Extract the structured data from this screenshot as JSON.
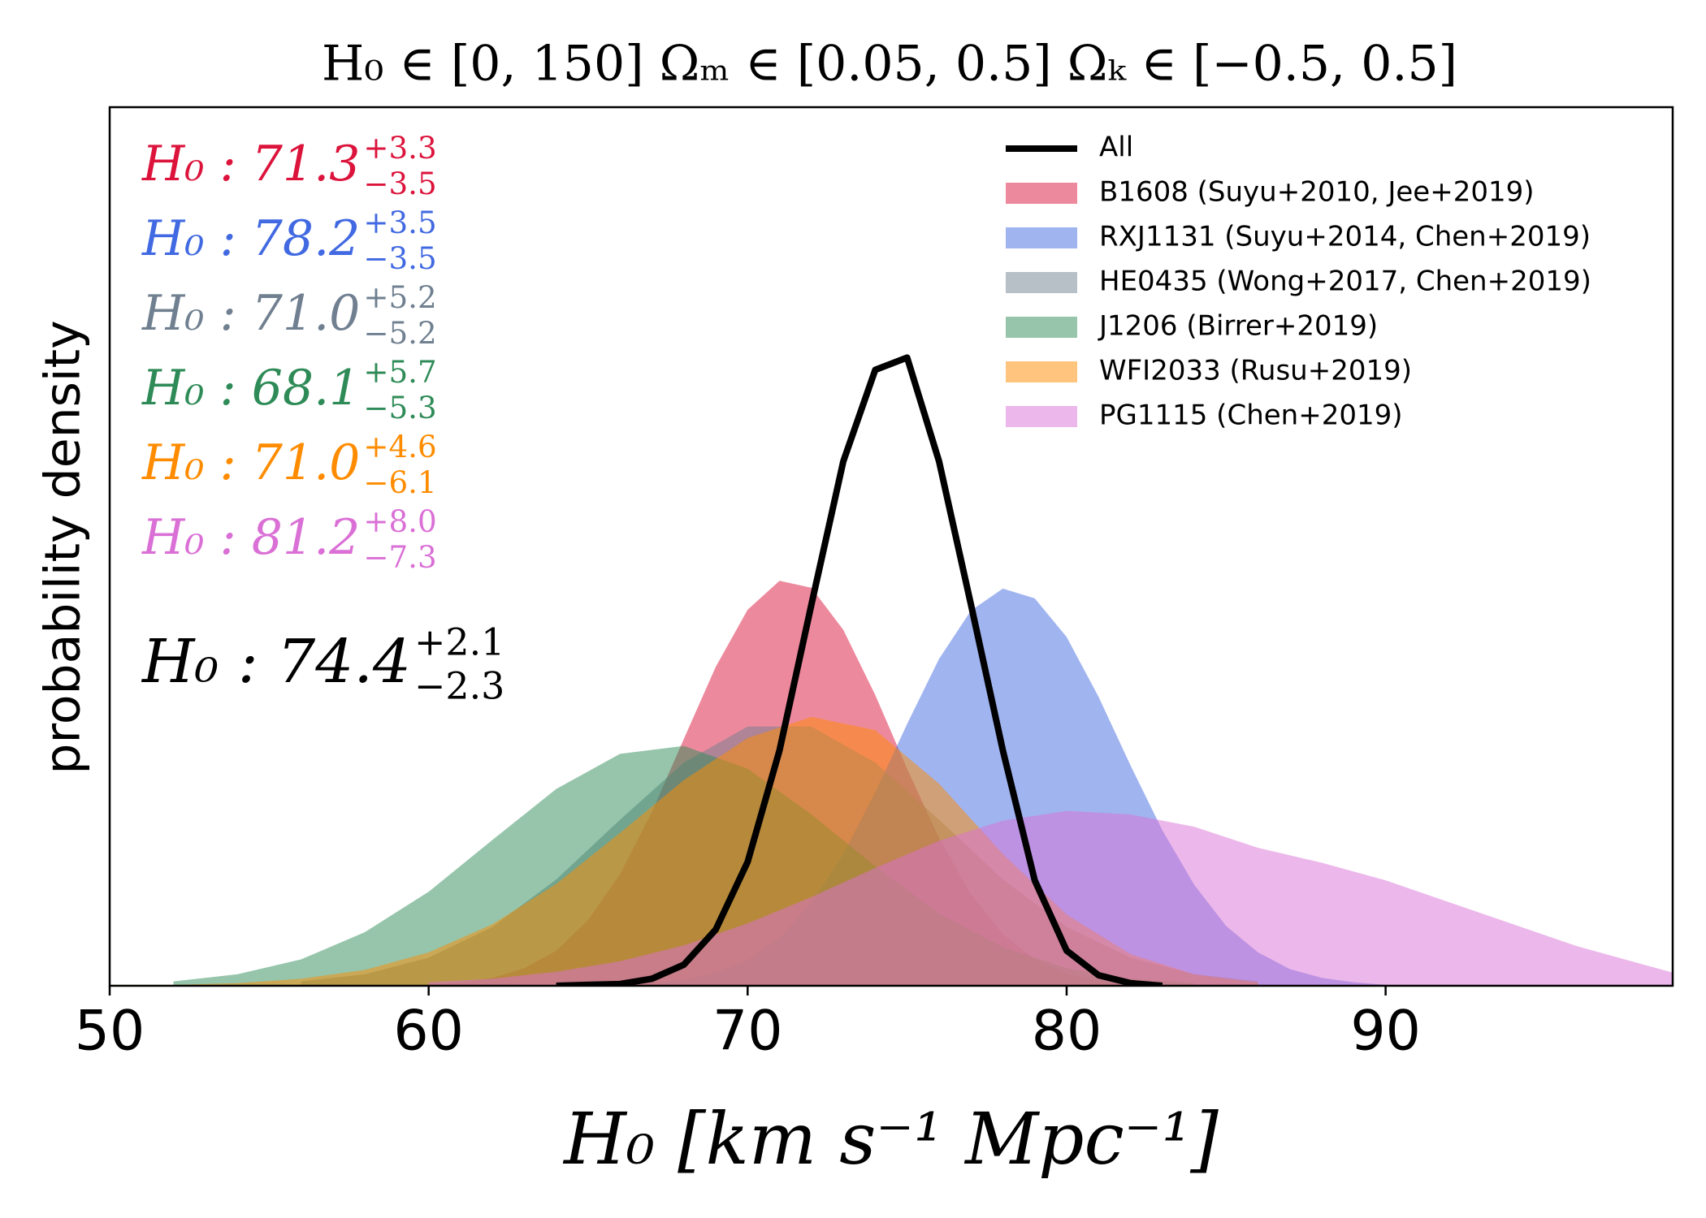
{
  "chart_data": {
    "type": "area",
    "title": "H₀ ∈ [0, 150]   Ωₘ ∈ [0.05, 0.5]   Ωₖ ∈ [−0.5, 0.5]",
    "xlabel": "H₀ [km s⁻¹ Mpc⁻¹]",
    "ylabel": "probability density",
    "xlim": [
      50,
      99
    ],
    "ylim": [
      0,
      1
    ],
    "xticks": [
      50,
      60,
      70,
      80,
      90
    ],
    "legend": "upper right",
    "fill_opacity": 0.5,
    "series": [
      {
        "name": "All",
        "type": "line",
        "color": "#000000",
        "x": [
          64,
          65,
          66,
          67,
          68,
          69,
          70,
          71,
          72,
          73,
          74,
          75,
          76,
          77,
          78,
          79,
          80,
          81,
          82,
          83
        ],
        "values": [
          0.0,
          0.001,
          0.002,
          0.008,
          0.024,
          0.064,
          0.141,
          0.268,
          0.434,
          0.597,
          0.701,
          0.715,
          0.597,
          0.434,
          0.268,
          0.12,
          0.04,
          0.012,
          0.003,
          0.0
        ]
      },
      {
        "name": "B1608 (Suyu+2010, Jee+2019)",
        "type": "area",
        "color": "#dc143c",
        "x": [
          60,
          61,
          62,
          63,
          64,
          65,
          66,
          67,
          68,
          69,
          70,
          71,
          72,
          73,
          74,
          75,
          76,
          77,
          78,
          79,
          80,
          81,
          82
        ],
        "values": [
          0.001,
          0.004,
          0.009,
          0.02,
          0.04,
          0.075,
          0.127,
          0.198,
          0.281,
          0.363,
          0.428,
          0.461,
          0.453,
          0.405,
          0.331,
          0.247,
          0.168,
          0.104,
          0.059,
          0.03,
          0.014,
          0.006,
          0.002
        ]
      },
      {
        "name": "RXJ1131 (Suyu+2014, Chen+2019)",
        "type": "area",
        "color": "#4169e1",
        "x": [
          66,
          67,
          68,
          69,
          70,
          71,
          72,
          73,
          74,
          75,
          76,
          77,
          78,
          79,
          80,
          81,
          82,
          83,
          84,
          85,
          86,
          87,
          88,
          89,
          90
        ],
        "values": [
          0.001,
          0.003,
          0.006,
          0.014,
          0.029,
          0.054,
          0.094,
          0.15,
          0.22,
          0.298,
          0.372,
          0.427,
          0.452,
          0.441,
          0.397,
          0.329,
          0.251,
          0.177,
          0.115,
          0.068,
          0.038,
          0.019,
          0.009,
          0.004,
          0.001
        ]
      },
      {
        "name": "HE0435 (Wong+2017, Chen+2019)",
        "type": "area",
        "color": "#708090",
        "x": [
          56,
          58,
          60,
          62,
          64,
          66,
          68,
          70,
          72,
          74,
          76,
          78,
          80,
          82,
          84,
          86
        ],
        "values": [
          0.005,
          0.013,
          0.032,
          0.067,
          0.121,
          0.189,
          0.254,
          0.295,
          0.295,
          0.254,
          0.189,
          0.121,
          0.067,
          0.032,
          0.013,
          0.005
        ]
      },
      {
        "name": "J1206 (Birrer+2019)",
        "type": "area",
        "color": "#2e8b57",
        "x": [
          52,
          54,
          56,
          58,
          60,
          62,
          64,
          66,
          68,
          70,
          72,
          74,
          76,
          78,
          80,
          82,
          84
        ],
        "values": [
          0.005,
          0.013,
          0.03,
          0.061,
          0.107,
          0.166,
          0.224,
          0.264,
          0.273,
          0.247,
          0.195,
          0.136,
          0.082,
          0.044,
          0.02,
          0.008,
          0.003
        ]
      },
      {
        "name": "WFI2033 (Rusu+2019)",
        "type": "area",
        "color": "#ff8c00",
        "x": [
          50,
          52,
          54,
          56,
          58,
          60,
          62,
          64,
          66,
          68,
          70,
          72,
          74,
          76,
          78,
          80,
          82,
          84,
          86
        ],
        "values": [
          0.001,
          0.001,
          0.003,
          0.008,
          0.018,
          0.038,
          0.07,
          0.116,
          0.174,
          0.234,
          0.282,
          0.306,
          0.291,
          0.23,
          0.15,
          0.081,
          0.036,
          0.013,
          0.004
        ]
      },
      {
        "name": "PG1115 (Chen+2019)",
        "type": "area",
        "color": "#da70d6",
        "x": [
          60,
          62,
          64,
          66,
          68,
          70,
          72,
          74,
          76,
          78,
          80,
          82,
          84,
          86,
          88,
          90,
          92,
          94,
          96,
          98,
          99
        ],
        "values": [
          0.004,
          0.008,
          0.016,
          0.028,
          0.046,
          0.071,
          0.101,
          0.134,
          0.165,
          0.188,
          0.199,
          0.195,
          0.181,
          0.157,
          0.14,
          0.12,
          0.095,
          0.07,
          0.045,
          0.025,
          0.015
        ]
      }
    ],
    "annotations": [
      {
        "text": "H₀ : 71.3",
        "upper": "+3.3",
        "lower": "−3.5",
        "color": "#dc143c"
      },
      {
        "text": "H₀ : 78.2",
        "upper": "+3.5",
        "lower": "−3.5",
        "color": "#4169e1"
      },
      {
        "text": "H₀ : 71.0",
        "upper": "+5.2",
        "lower": "−5.2",
        "color": "#708090"
      },
      {
        "text": "H₀ : 68.1",
        "upper": "+5.7",
        "lower": "−5.3",
        "color": "#2e8b57"
      },
      {
        "text": "H₀ : 71.0",
        "upper": "+4.6",
        "lower": "−6.1",
        "color": "#ff8c00"
      },
      {
        "text": "H₀ : 81.2",
        "upper": "+8.0",
        "lower": "−7.3",
        "color": "#da70d6"
      },
      {
        "text": "H₀ : 74.4",
        "upper": "+2.1",
        "lower": "−2.3",
        "color": "#000000"
      }
    ]
  }
}
